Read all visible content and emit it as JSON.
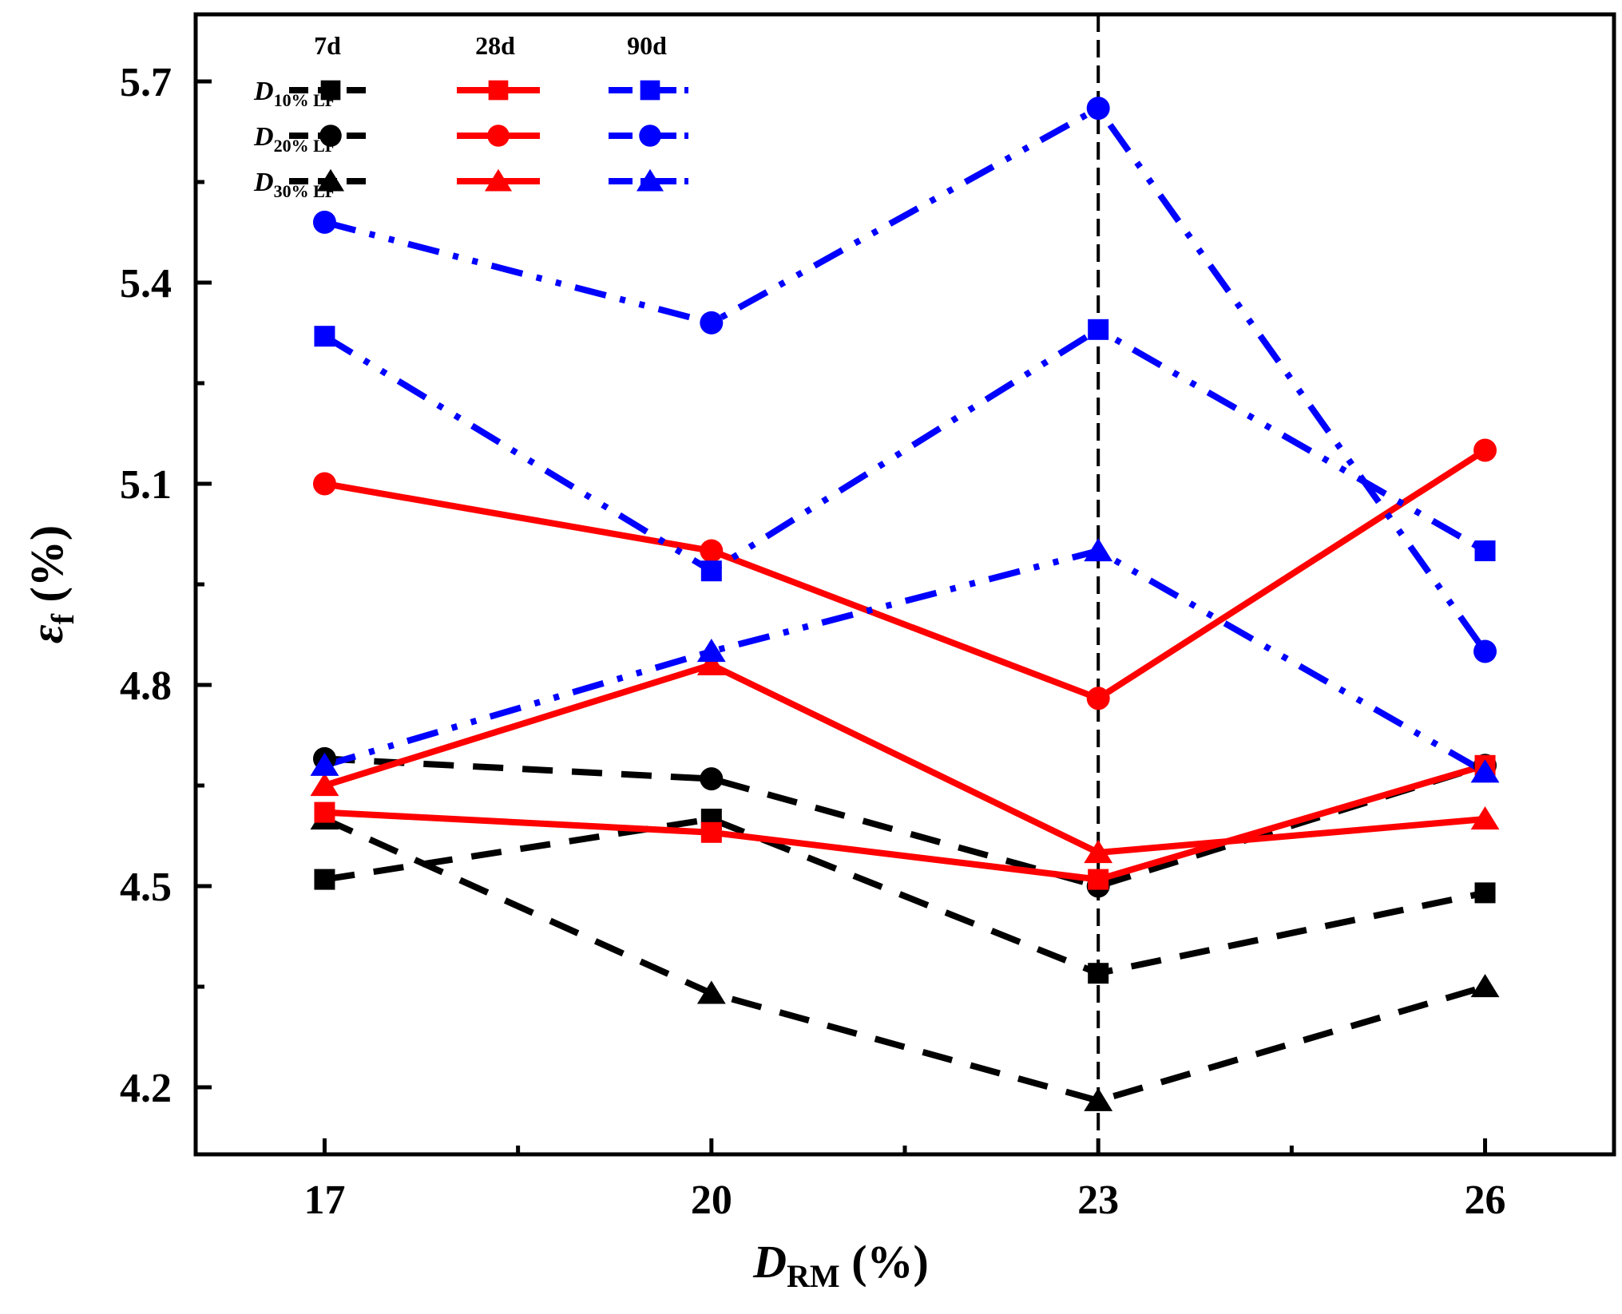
{
  "chart_data": {
    "type": "line",
    "title": "",
    "xlabel": {
      "main": "D",
      "sub": "RM",
      "unit": " (%)"
    },
    "ylabel": {
      "main": "ε",
      "sub": "f",
      "unit": " (%)"
    },
    "x": [
      17,
      20,
      23,
      26
    ],
    "x_tick_labels": [
      "17",
      "20",
      "23",
      "26"
    ],
    "xlim": [
      16,
      27
    ],
    "y_tick_labels": [
      "4.2",
      "4.5",
      "4.8",
      "5.1",
      "5.4",
      "5.7"
    ],
    "y_ticks": [
      4.2,
      4.5,
      4.8,
      5.1,
      5.4,
      5.7
    ],
    "ylim": [
      4.1,
      5.8
    ],
    "grid": false,
    "reference_line": {
      "x": 23,
      "style": "dashed",
      "color": "#000000"
    },
    "legend": {
      "placement": "top-left",
      "column_headers": [
        "7d",
        "28d",
        "90d"
      ],
      "rows": [
        {
          "main": "D",
          "sub": "10% LF",
          "marker": "square"
        },
        {
          "main": "D",
          "sub": "20% LF",
          "marker": "circle"
        },
        {
          "main": "D",
          "sub": "30% LF",
          "marker": "triangle"
        }
      ]
    },
    "series": [
      {
        "name": "D10% LF 7d",
        "age": "7d",
        "group": "D10% LF",
        "values": [
          4.51,
          4.6,
          4.37,
          4.49
        ],
        "color": "#000000",
        "line_style": "dash",
        "marker": "square"
      },
      {
        "name": "D20% LF 7d",
        "age": "7d",
        "group": "D20% LF",
        "values": [
          4.69,
          4.66,
          4.5,
          4.68
        ],
        "color": "#000000",
        "line_style": "dash",
        "marker": "circle"
      },
      {
        "name": "D30% LF 7d",
        "age": "7d",
        "group": "D30% LF",
        "values": [
          4.6,
          4.34,
          4.18,
          4.35
        ],
        "color": "#000000",
        "line_style": "dash",
        "marker": "triangle"
      },
      {
        "name": "D10% LF 28d",
        "age": "28d",
        "group": "D10% LF",
        "values": [
          4.61,
          4.58,
          4.51,
          4.68
        ],
        "color": "#ff0000",
        "line_style": "solid",
        "marker": "square"
      },
      {
        "name": "D20% LF 28d",
        "age": "28d",
        "group": "D20% LF",
        "values": [
          5.1,
          5.0,
          4.78,
          5.15
        ],
        "color": "#ff0000",
        "line_style": "solid",
        "marker": "circle"
      },
      {
        "name": "D30% LF 28d",
        "age": "28d",
        "group": "D30% LF",
        "values": [
          4.65,
          4.83,
          4.55,
          4.6
        ],
        "color": "#ff0000",
        "line_style": "solid",
        "marker": "triangle"
      },
      {
        "name": "D10% LF 90d",
        "age": "90d",
        "group": "D10% LF",
        "values": [
          5.32,
          4.97,
          5.33,
          5.0
        ],
        "color": "#0000ff",
        "line_style": "dash-dot-dot",
        "marker": "square"
      },
      {
        "name": "D20% LF 90d",
        "age": "90d",
        "group": "D20% LF",
        "values": [
          5.49,
          5.34,
          5.66,
          4.85
        ],
        "color": "#0000ff",
        "line_style": "dash-dot-dot",
        "marker": "circle"
      },
      {
        "name": "D30% LF 90d",
        "age": "90d",
        "group": "D30% LF",
        "values": [
          4.68,
          4.85,
          5.0,
          4.67
        ],
        "color": "#0000ff",
        "line_style": "dash-dot-dot",
        "marker": "triangle"
      }
    ]
  }
}
